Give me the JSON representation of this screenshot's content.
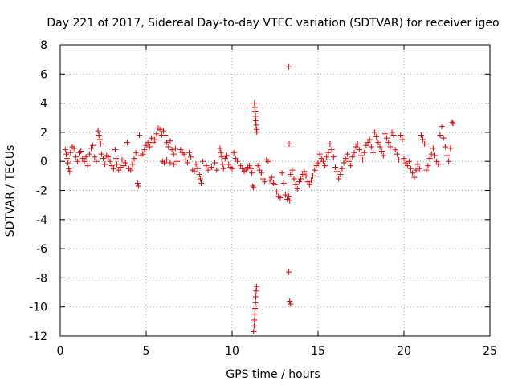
{
  "chart_data": {
    "type": "scatter",
    "title": "Day 221 of 2017, Sidereal Day-to-day VTEC variation (SDTVAR) for receiver igeo",
    "xlabel": "GPS time / hours",
    "ylabel": "SDTVAR / TECUs",
    "xlim": [
      0,
      25
    ],
    "ylim": [
      -12,
      8
    ],
    "xticks": [
      "0",
      "5",
      "10",
      "15",
      "20",
      "25"
    ],
    "yticks": [
      "8",
      "6",
      "4",
      "2",
      "0",
      "-2",
      "-4",
      "-6",
      "-8",
      "-10",
      "-12"
    ],
    "grid": true,
    "marker": "+",
    "color": "#e00000",
    "series": [
      {
        "name": "SDTVAR",
        "points": [
          [
            0.3,
            0.8
          ],
          [
            0.35,
            0.5
          ],
          [
            0.4,
            0.2
          ],
          [
            0.45,
            -0.1
          ],
          [
            0.5,
            -0.5
          ],
          [
            0.55,
            -0.7
          ],
          [
            0.6,
            0.6
          ],
          [
            0.7,
            1.0
          ],
          [
            0.8,
            0.9
          ],
          [
            0.9,
            0.3
          ],
          [
            1.0,
            0.0
          ],
          [
            1.1,
            0.6
          ],
          [
            1.2,
            0.7
          ],
          [
            1.3,
            0.2
          ],
          [
            1.4,
            0.0
          ],
          [
            1.5,
            0.3
          ],
          [
            1.6,
            -0.3
          ],
          [
            1.7,
            0.5
          ],
          [
            1.8,
            0.9
          ],
          [
            1.9,
            1.1
          ],
          [
            2.0,
            0.3
          ],
          [
            2.1,
            0.0
          ],
          [
            2.2,
            2.1
          ],
          [
            2.25,
            1.8
          ],
          [
            2.3,
            1.5
          ],
          [
            2.35,
            1.2
          ],
          [
            2.4,
            0.5
          ],
          [
            2.5,
            0.2
          ],
          [
            2.6,
            -0.2
          ],
          [
            2.7,
            0.4
          ],
          [
            2.8,
            0.3
          ],
          [
            2.9,
            0.0
          ],
          [
            3.0,
            -0.3
          ],
          [
            3.1,
            -0.5
          ],
          [
            3.2,
            0.8
          ],
          [
            3.25,
            0.2
          ],
          [
            3.3,
            -0.2
          ],
          [
            3.4,
            -0.6
          ],
          [
            3.5,
            -0.4
          ],
          [
            3.6,
            0.1
          ],
          [
            3.7,
            -0.3
          ],
          [
            3.8,
            -0.1
          ],
          [
            3.9,
            1.3
          ],
          [
            4.0,
            -0.5
          ],
          [
            4.1,
            -0.6
          ],
          [
            4.2,
            -0.2
          ],
          [
            4.3,
            0.2
          ],
          [
            4.4,
            0.6
          ],
          [
            4.5,
            -1.5
          ],
          [
            4.55,
            -1.7
          ],
          [
            4.6,
            1.8
          ],
          [
            4.7,
            0.4
          ],
          [
            4.8,
            0.5
          ],
          [
            4.9,
            0.8
          ],
          [
            5.0,
            1.1
          ],
          [
            5.1,
            1.3
          ],
          [
            5.2,
            1.0
          ],
          [
            5.3,
            1.6
          ],
          [
            5.4,
            1.3
          ],
          [
            5.5,
            1.5
          ],
          [
            5.6,
            1.9
          ],
          [
            5.7,
            2.3
          ],
          [
            5.8,
            2.2
          ],
          [
            5.9,
            1.8
          ],
          [
            6.0,
            2.1
          ],
          [
            6.1,
            1.8
          ],
          [
            6.2,
            1.3
          ],
          [
            6.3,
            1.0
          ],
          [
            6.4,
            1.4
          ],
          [
            6.5,
            0.8
          ],
          [
            6.6,
            0.5
          ],
          [
            6.7,
            0.9
          ],
          [
            5.95,
            0.0
          ],
          [
            6.05,
            -0.1
          ],
          [
            6.2,
            0.1
          ],
          [
            6.4,
            -0.1
          ],
          [
            6.6,
            -0.2
          ],
          [
            6.8,
            0.0
          ],
          [
            7.0,
            0.8
          ],
          [
            7.1,
            0.6
          ],
          [
            7.2,
            0.5
          ],
          [
            7.3,
            0.1
          ],
          [
            7.4,
            -0.1
          ],
          [
            7.5,
            0.6
          ],
          [
            7.6,
            0.3
          ],
          [
            7.7,
            -0.6
          ],
          [
            7.8,
            -0.7
          ],
          [
            7.9,
            -0.2
          ],
          [
            8.0,
            -0.5
          ],
          [
            8.1,
            -0.9
          ],
          [
            8.15,
            -1.2
          ],
          [
            8.2,
            -1.5
          ],
          [
            8.3,
            0.0
          ],
          [
            8.5,
            -0.3
          ],
          [
            8.6,
            -0.6
          ],
          [
            8.8,
            -0.4
          ],
          [
            9.0,
            -0.1
          ],
          [
            9.1,
            -0.6
          ],
          [
            9.3,
            0.9
          ],
          [
            9.35,
            0.6
          ],
          [
            9.4,
            0.3
          ],
          [
            9.45,
            -0.2
          ],
          [
            9.5,
            -0.5
          ],
          [
            9.6,
            0.2
          ],
          [
            9.7,
            0.4
          ],
          [
            9.8,
            -0.2
          ],
          [
            9.9,
            -0.4
          ],
          [
            10.0,
            -0.5
          ],
          [
            10.1,
            0.6
          ],
          [
            10.2,
            0.2
          ],
          [
            10.3,
            0.0
          ],
          [
            10.5,
            -0.3
          ],
          [
            10.6,
            -0.5
          ],
          [
            10.7,
            -0.7
          ],
          [
            10.8,
            -0.6
          ],
          [
            10.9,
            -0.4
          ],
          [
            11.0,
            -0.3
          ],
          [
            11.1,
            -0.5
          ],
          [
            11.15,
            -0.8
          ],
          [
            11.2,
            -1.7
          ],
          [
            11.25,
            -1.8
          ],
          [
            11.3,
            4.0
          ],
          [
            11.32,
            3.7
          ],
          [
            11.34,
            3.4
          ],
          [
            11.36,
            3.1
          ],
          [
            11.38,
            2.8
          ],
          [
            11.4,
            2.5
          ],
          [
            11.42,
            2.2
          ],
          [
            11.44,
            2.0
          ],
          [
            11.25,
            -11.7
          ],
          [
            11.28,
            -11.3
          ],
          [
            11.3,
            -10.9
          ],
          [
            11.32,
            -10.5
          ],
          [
            11.34,
            -10.1
          ],
          [
            11.36,
            -9.7
          ],
          [
            11.38,
            -9.3
          ],
          [
            11.4,
            -8.9
          ],
          [
            11.42,
            -8.6
          ],
          [
            11.5,
            -0.3
          ],
          [
            11.6,
            -0.6
          ],
          [
            11.7,
            -0.8
          ],
          [
            11.8,
            -1.2
          ],
          [
            11.9,
            -1.4
          ],
          [
            12.0,
            0.1
          ],
          [
            12.1,
            0.0
          ],
          [
            12.2,
            -1.3
          ],
          [
            12.3,
            -1.1
          ],
          [
            12.4,
            -1.5
          ],
          [
            12.5,
            -1.6
          ],
          [
            12.6,
            -2.1
          ],
          [
            12.7,
            -2.4
          ],
          [
            12.8,
            -2.5
          ],
          [
            12.9,
            -0.8
          ],
          [
            13.0,
            -1.5
          ],
          [
            13.1,
            -2.3
          ],
          [
            13.2,
            -2.6
          ],
          [
            13.3,
            -2.4
          ],
          [
            13.35,
            -2.7
          ],
          [
            13.4,
            -0.9
          ],
          [
            13.5,
            -0.6
          ],
          [
            13.6,
            -1.2
          ],
          [
            13.7,
            -1.6
          ],
          [
            13.8,
            -1.9
          ],
          [
            13.9,
            -1.4
          ],
          [
            14.0,
            -1.2
          ],
          [
            14.1,
            -0.9
          ],
          [
            14.2,
            -0.7
          ],
          [
            14.3,
            -1.0
          ],
          [
            14.4,
            -1.4
          ],
          [
            14.5,
            -1.6
          ],
          [
            14.6,
            -1.3
          ],
          [
            14.7,
            -1.0
          ],
          [
            14.8,
            -0.6
          ],
          [
            14.9,
            -0.3
          ],
          [
            15.0,
            -0.1
          ],
          [
            15.1,
            0.5
          ],
          [
            15.2,
            0.2
          ],
          [
            15.3,
            0.0
          ],
          [
            15.4,
            -0.3
          ],
          [
            15.5,
            0.3
          ],
          [
            15.6,
            0.6
          ],
          [
            15.7,
            1.2
          ],
          [
            15.8,
            0.8
          ],
          [
            15.9,
            0.3
          ],
          [
            16.0,
            -0.4
          ],
          [
            16.1,
            -0.7
          ],
          [
            16.2,
            -1.2
          ],
          [
            16.3,
            -0.9
          ],
          [
            16.4,
            -0.5
          ],
          [
            16.5,
            -0.1
          ],
          [
            16.6,
            0.2
          ],
          [
            16.7,
            0.5
          ],
          [
            16.8,
            0.0
          ],
          [
            16.9,
            -0.3
          ],
          [
            17.0,
            0.3
          ],
          [
            17.1,
            0.6
          ],
          [
            17.2,
            1.0
          ],
          [
            17.3,
            1.2
          ],
          [
            17.4,
            0.8
          ],
          [
            17.5,
            0.4
          ],
          [
            17.6,
            0.1
          ],
          [
            17.7,
            0.6
          ],
          [
            17.8,
            1.1
          ],
          [
            17.9,
            1.3
          ],
          [
            18.0,
            1.5
          ],
          [
            18.1,
            1.0
          ],
          [
            18.2,
            0.6
          ],
          [
            18.3,
            2.0
          ],
          [
            18.4,
            1.7
          ],
          [
            18.5,
            1.3
          ],
          [
            18.6,
            1.0
          ],
          [
            18.7,
            0.7
          ],
          [
            18.8,
            0.4
          ],
          [
            18.9,
            1.9
          ],
          [
            19.0,
            1.6
          ],
          [
            19.1,
            1.3
          ],
          [
            19.2,
            1.0
          ],
          [
            19.3,
            2.0
          ],
          [
            19.4,
            1.8
          ],
          [
            19.5,
            0.8
          ],
          [
            19.6,
            0.5
          ],
          [
            19.7,
            0.1
          ],
          [
            19.8,
            1.8
          ],
          [
            19.9,
            1.5
          ],
          [
            20.0,
            0.2
          ],
          [
            20.1,
            -0.1
          ],
          [
            20.2,
            -0.3
          ],
          [
            20.3,
            0.0
          ],
          [
            20.4,
            -0.5
          ],
          [
            20.5,
            -0.8
          ],
          [
            20.6,
            -1.1
          ],
          [
            20.7,
            -0.6
          ],
          [
            20.8,
            -0.2
          ],
          [
            20.9,
            -0.5
          ],
          [
            21.0,
            1.8
          ],
          [
            21.1,
            1.5
          ],
          [
            21.2,
            1.2
          ],
          [
            21.3,
            -0.6
          ],
          [
            21.4,
            -0.3
          ],
          [
            21.5,
            0.2
          ],
          [
            21.6,
            0.5
          ],
          [
            21.7,
            0.9
          ],
          [
            21.8,
            0.4
          ],
          [
            21.9,
            0.0
          ],
          [
            22.0,
            -0.2
          ],
          [
            22.1,
            1.8
          ],
          [
            22.2,
            2.4
          ],
          [
            22.3,
            1.6
          ],
          [
            22.4,
            1.0
          ],
          [
            22.5,
            0.4
          ],
          [
            22.6,
            0.0
          ],
          [
            22.7,
            0.9
          ],
          [
            22.8,
            2.7
          ],
          [
            22.85,
            2.6
          ],
          [
            13.3,
            6.5
          ],
          [
            13.32,
            1.2
          ],
          [
            13.3,
            -7.6
          ],
          [
            13.35,
            -9.6
          ],
          [
            13.4,
            -9.8
          ]
        ]
      }
    ]
  }
}
